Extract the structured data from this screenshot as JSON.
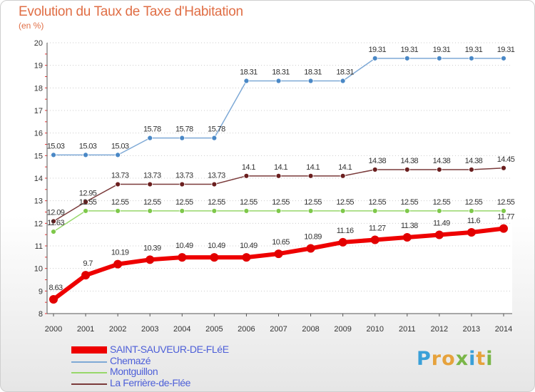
{
  "title": "Evolution du Taux de Taxe d'Habitation",
  "subtitle": "(en %)",
  "logo": {
    "text": "Proxiti",
    "colors": [
      "#3aa0d8",
      "#e6a23c",
      "#e6a23c",
      "#7ab648",
      "#3aa0d8",
      "#e6a23c",
      "#7ab648"
    ]
  },
  "chart_data": {
    "type": "line",
    "x": [
      2000,
      2001,
      2002,
      2003,
      2004,
      2005,
      2006,
      2007,
      2008,
      2009,
      2010,
      2011,
      2012,
      2013,
      2014
    ],
    "ylim": [
      8,
      20
    ],
    "yticks": [
      8,
      9,
      10,
      11,
      12,
      13,
      14,
      15,
      16,
      17,
      18,
      19,
      20
    ],
    "grid": "horizontal dotted",
    "legend_placement": "bottom-left",
    "series": [
      {
        "name": "Chemazé",
        "color": "#7ea9d6",
        "point_color": "#4a88c6",
        "width": 1.5,
        "r": 3.5,
        "values": [
          15.03,
          15.03,
          15.03,
          15.78,
          15.78,
          15.78,
          18.31,
          18.31,
          18.31,
          18.31,
          19.31,
          19.31,
          19.31,
          19.31,
          19.31
        ],
        "labels": [
          "15.03",
          "15.03",
          "15.03",
          "15.78",
          "15.78",
          "15.78",
          "18.31",
          "18.31",
          "18.31",
          "18.31",
          "19.31",
          "19.31",
          "19.31",
          "19.31",
          "19.31"
        ]
      },
      {
        "name": "La Ferrière-de-Flée",
        "color": "#7a3a3a",
        "point_color": "#6b1f1f",
        "width": 1.5,
        "r": 3.5,
        "values": [
          12.09,
          12.95,
          13.73,
          13.73,
          13.73,
          13.73,
          14.1,
          14.1,
          14.1,
          14.1,
          14.38,
          14.38,
          14.38,
          14.38,
          14.45
        ],
        "labels": [
          "12.09",
          "12.95",
          "13.73",
          "13.73",
          "13.73",
          "13.73",
          "14.1",
          "14.1",
          "14.1",
          "14.1",
          "14.38",
          "14.38",
          "14.38",
          "14.38",
          "14.45"
        ]
      },
      {
        "name": "Montguillon",
        "color": "#98d86a",
        "point_color": "#7ec84a",
        "width": 1.5,
        "r": 3.5,
        "values": [
          11.63,
          12.55,
          12.55,
          12.55,
          12.55,
          12.55,
          12.55,
          12.55,
          12.55,
          12.55,
          12.55,
          12.55,
          12.55,
          12.55,
          12.55
        ],
        "labels": [
          "11.63",
          "12.55",
          "12.55",
          "12.55",
          "12.55",
          "12.55",
          "12.55",
          "12.55",
          "12.55",
          "12.55",
          "12.55",
          "12.55",
          "12.55",
          "12.55",
          "12.55"
        ]
      },
      {
        "name": "SAINT-SAUVEUR-DE-FLéE",
        "color": "#ee0000",
        "point_color": "#e20000",
        "width": 6,
        "r": 6,
        "values": [
          8.63,
          9.7,
          10.19,
          10.39,
          10.49,
          10.49,
          10.49,
          10.65,
          10.89,
          11.16,
          11.27,
          11.38,
          11.49,
          11.6,
          11.77
        ],
        "labels": [
          "8.63",
          "9.7",
          "10.19",
          "10.39",
          "10.49",
          "10.49",
          "10.49",
          "10.65",
          "10.89",
          "11.16",
          "11.27",
          "11.38",
          "11.49",
          "11.6",
          "11.77"
        ]
      }
    ]
  },
  "legend": [
    {
      "name": "SAINT-SAUVEUR-DE-FLéE",
      "color": "#ee0000",
      "text_color": "#4d5fd8"
    },
    {
      "name": "Chemazé",
      "color": "#7ea9d6",
      "text_color": "#4d5fd8"
    },
    {
      "name": "Montguillon",
      "color": "#98d86a",
      "text_color": "#4d5fd8"
    },
    {
      "name": "La Ferrière-de-Flée",
      "color": "#7a3a3a",
      "text_color": "#4d5fd8"
    }
  ]
}
